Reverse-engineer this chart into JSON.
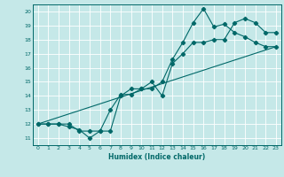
{
  "xlabel": "Humidex (Indice chaleur)",
  "bg_color": "#c5e8e8",
  "grid_color": "#ffffff",
  "line_color": "#006868",
  "xlim": [
    -0.5,
    23.5
  ],
  "ylim": [
    10.5,
    20.5
  ],
  "xticks": [
    0,
    1,
    2,
    3,
    4,
    5,
    6,
    7,
    8,
    9,
    10,
    11,
    12,
    13,
    14,
    15,
    16,
    17,
    18,
    19,
    20,
    21,
    22,
    23
  ],
  "yticks": [
    11,
    12,
    13,
    14,
    15,
    16,
    17,
    18,
    19,
    20
  ],
  "line1_x": [
    0,
    1,
    2,
    3,
    4,
    5,
    6,
    7,
    8,
    9,
    10,
    11,
    12,
    13,
    14,
    15,
    16,
    17,
    18,
    19,
    20,
    21,
    22,
    23
  ],
  "line1_y": [
    12,
    12,
    12,
    11.8,
    11.6,
    11.0,
    11.5,
    13.0,
    14.1,
    14.1,
    14.5,
    14.5,
    15.0,
    16.6,
    17.8,
    19.2,
    20.2,
    18.9,
    19.1,
    18.5,
    18.2,
    17.8,
    17.5,
    17.5
  ],
  "line2_x": [
    0,
    1,
    2,
    3,
    4,
    5,
    6,
    7,
    8,
    9,
    10,
    11,
    12,
    13,
    14,
    15,
    16,
    17,
    18,
    19,
    20,
    21,
    22,
    23
  ],
  "line2_y": [
    12,
    12,
    12,
    12.0,
    11.5,
    11.5,
    11.5,
    11.5,
    14.0,
    14.5,
    14.5,
    15.0,
    14.0,
    16.3,
    17.0,
    17.8,
    17.8,
    18.0,
    18.0,
    19.2,
    19.5,
    19.2,
    18.5,
    18.5
  ],
  "line3_x": [
    0,
    23
  ],
  "line3_y": [
    12,
    17.5
  ]
}
